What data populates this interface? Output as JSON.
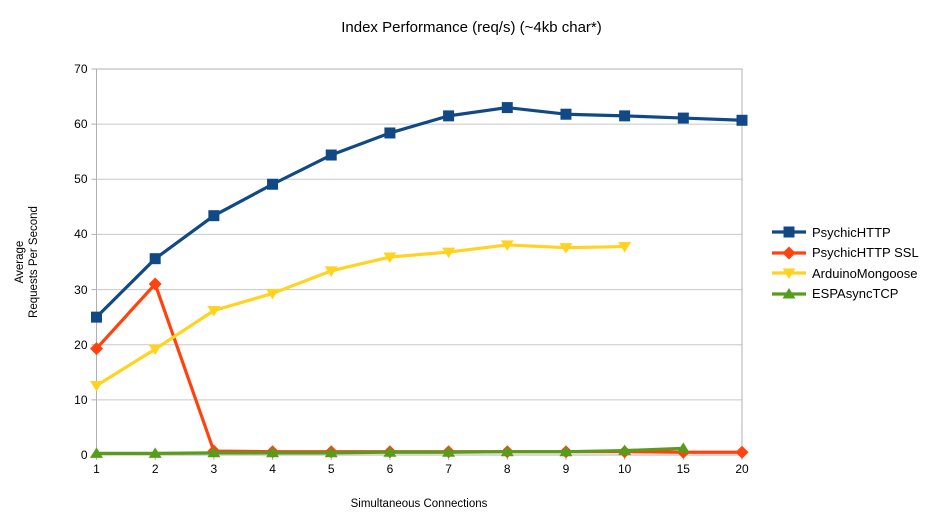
{
  "chart_data": {
    "type": "line",
    "title": "Index Performance (req/s) (~4kb char*)",
    "xlabel": "Simultaneous Connections",
    "ylabel_lines": [
      "Average",
      "Requests Per Second"
    ],
    "categories": [
      "1",
      "2",
      "3",
      "4",
      "5",
      "6",
      "7",
      "8",
      "9",
      "10",
      "15",
      "20"
    ],
    "y_ticks": [
      0,
      10,
      20,
      30,
      40,
      50,
      60,
      70
    ],
    "ylim": [
      0,
      70
    ],
    "grid": "horizontal",
    "legend_position": "right",
    "axis_color": "#b0b0b0",
    "grid_color": "#c8c8c8",
    "series": [
      {
        "name": "PsychicHTTP",
        "color": "#114986",
        "marker": "square",
        "values": [
          25.0,
          35.6,
          43.4,
          49.1,
          54.4,
          58.4,
          61.5,
          63.0,
          61.8,
          61.5,
          61.1,
          60.7
        ]
      },
      {
        "name": "PsychicHTTP SSL",
        "color": "#FF420E",
        "marker": "diamond",
        "values": [
          19.3,
          31.0,
          0.7,
          0.6,
          0.6,
          0.6,
          0.6,
          0.6,
          0.6,
          0.6,
          0.5,
          0.5
        ]
      },
      {
        "name": "ArduinoMongoose",
        "color": "#FFD320",
        "marker": "triangle-down",
        "values": [
          12.6,
          19.2,
          26.2,
          29.3,
          33.4,
          35.9,
          36.8,
          38.1,
          37.6,
          37.8,
          null,
          null
        ]
      },
      {
        "name": "ESPAsyncTCP",
        "color": "#579D1C",
        "marker": "triangle-up",
        "values": [
          0.3,
          0.3,
          0.4,
          0.4,
          0.4,
          0.5,
          0.5,
          0.6,
          0.6,
          0.8,
          1.2,
          null
        ]
      }
    ]
  }
}
